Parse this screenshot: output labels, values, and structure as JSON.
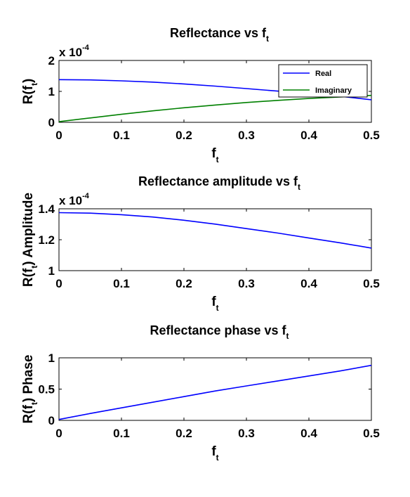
{
  "chart_data": [
    {
      "type": "line",
      "title": "Reflectance vs f",
      "title_sub": "t",
      "xlabel": "f",
      "xlabel_sub": "t",
      "ylabel": "R(f",
      "ylabel_sub": "t",
      "ylabel_end": ")",
      "exponent_base": "x 10",
      "exponent": "-4",
      "xlim": [
        0,
        0.5
      ],
      "ylim": [
        0,
        2
      ],
      "xticks": [
        "0",
        "0.1",
        "0.2",
        "0.3",
        "0.4",
        "0.5"
      ],
      "yticks": [
        "0",
        "1",
        "2"
      ],
      "legend_position": "top-right",
      "x": [
        0,
        0.05,
        0.1,
        0.15,
        0.2,
        0.25,
        0.3,
        0.35,
        0.4,
        0.45,
        0.5
      ],
      "series": [
        {
          "name": "Real",
          "color": "#0000ff",
          "values": [
            1.38,
            1.37,
            1.34,
            1.3,
            1.24,
            1.17,
            1.09,
            1.01,
            0.93,
            0.84,
            0.73
          ]
        },
        {
          "name": "Imaginary",
          "color": "#008000",
          "values": [
            0.02,
            0.14,
            0.26,
            0.37,
            0.47,
            0.56,
            0.64,
            0.71,
            0.77,
            0.82,
            0.87
          ]
        }
      ]
    },
    {
      "type": "line",
      "title": "Reflectance amplitude vs f",
      "title_sub": "t",
      "xlabel": "f",
      "xlabel_sub": "t",
      "ylabel": "R(f",
      "ylabel_sub": "t",
      "ylabel_end": ") Amplitude",
      "exponent_base": "x 10",
      "exponent": "-4",
      "xlim": [
        0,
        0.5
      ],
      "ylim": [
        1,
        1.4
      ],
      "xticks": [
        "0",
        "0.1",
        "0.2",
        "0.3",
        "0.4",
        "0.5"
      ],
      "yticks": [
        "1",
        "1.2",
        "1.4"
      ],
      "x": [
        0,
        0.05,
        0.1,
        0.15,
        0.2,
        0.25,
        0.3,
        0.35,
        0.4,
        0.45,
        0.5
      ],
      "series": [
        {
          "color": "#0000ff",
          "values": [
            1.375,
            1.372,
            1.362,
            1.347,
            1.326,
            1.301,
            1.272,
            1.243,
            1.211,
            1.18,
            1.146
          ]
        }
      ]
    },
    {
      "type": "line",
      "title": "Reflectance phase vs f",
      "title_sub": "t",
      "xlabel": "f",
      "xlabel_sub": "t",
      "ylabel": "R(f",
      "ylabel_sub": "t",
      "ylabel_end": ") Phase",
      "xlim": [
        0,
        0.5
      ],
      "ylim": [
        0,
        1
      ],
      "xticks": [
        "0",
        "0.1",
        "0.2",
        "0.3",
        "0.4",
        "0.5"
      ],
      "yticks": [
        "0",
        "0.5",
        "1"
      ],
      "x": [
        0,
        0.05,
        0.1,
        0.15,
        0.2,
        0.25,
        0.3,
        0.35,
        0.4,
        0.45,
        0.5
      ],
      "series": [
        {
          "color": "#0000ff",
          "values": [
            0.015,
            0.11,
            0.2,
            0.29,
            0.38,
            0.47,
            0.55,
            0.63,
            0.71,
            0.79,
            0.88
          ]
        }
      ]
    }
  ]
}
